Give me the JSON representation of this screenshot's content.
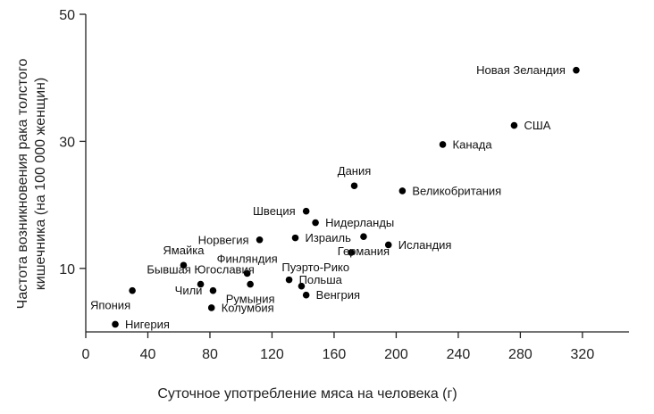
{
  "chart_data": {
    "type": "scatter",
    "title": "",
    "xlabel": "Суточное употребление мяса на человека (г)",
    "ylabel_lines": [
      "Частота возникновения рака толстого",
      "кишечника (на 100 000 женщин)"
    ],
    "xlim": [
      0,
      350
    ],
    "ylim": [
      0,
      50
    ],
    "x_ticks": [
      0,
      40,
      80,
      120,
      160,
      200,
      240,
      280,
      320
    ],
    "y_ticks": [
      10,
      30,
      50
    ],
    "grid": false,
    "legend": "none",
    "points": [
      {
        "label": "Новая Зеландия",
        "x": 316,
        "y": 41.2,
        "label_pos": "left"
      },
      {
        "label": "США",
        "x": 276,
        "y": 32.5,
        "label_pos": "right"
      },
      {
        "label": "Канада",
        "x": 230,
        "y": 29.5,
        "label_pos": "right"
      },
      {
        "label": "Дания",
        "x": 173,
        "y": 23.0,
        "label_pos": "above"
      },
      {
        "label": "Великобритания",
        "x": 204,
        "y": 22.2,
        "label_pos": "right"
      },
      {
        "label": "Швеция",
        "x": 142,
        "y": 19.0,
        "label_pos": "left"
      },
      {
        "label": "Нидерланды",
        "x": 148,
        "y": 17.2,
        "label_pos": "right"
      },
      {
        "label": "Норвегия",
        "x": 112,
        "y": 14.5,
        "label_pos": "left"
      },
      {
        "label": "Израиль",
        "x": 135,
        "y": 14.8,
        "label_pos": "right"
      },
      {
        "label": "Исландия",
        "x": 195,
        "y": 13.7,
        "label_pos": "right"
      },
      {
        "label": "Германия",
        "x": 179,
        "y": 15.0,
        "label_pos": "below"
      },
      {
        "label": "Ямайка",
        "x": 63,
        "y": 10.5,
        "label_pos": "above"
      },
      {
        "label": "Финляндия",
        "x": 104,
        "y": 9.2,
        "label_pos": "above"
      },
      {
        "label": "Пуэрто-Рико",
        "x": 171,
        "y": 12.5,
        "label_pos": "belowleft"
      },
      {
        "label": "Бывшая Югославия",
        "x": 74,
        "y": 7.5,
        "label_pos": "above"
      },
      {
        "label": "Польша",
        "x": 131,
        "y": 8.2,
        "label_pos": "right"
      },
      {
        "label": "Япония",
        "x": 30,
        "y": 6.5,
        "label_pos": "belowleft"
      },
      {
        "label": "Чили",
        "x": 82,
        "y": 6.5,
        "label_pos": "left"
      },
      {
        "label": "Румыния",
        "x": 106,
        "y": 7.5,
        "label_pos": "below"
      },
      {
        "label": "Венгрия",
        "x": 142,
        "y": 5.8,
        "label_pos": "right"
      },
      {
        "label": "Колумбия",
        "x": 81,
        "y": 3.8,
        "label_pos": "right"
      },
      {
        "label": "Нигерия",
        "x": 19,
        "y": 1.2,
        "label_pos": "right"
      },
      {
        "label": "",
        "x": 139,
        "y": 7.2,
        "label_pos": "none"
      }
    ]
  }
}
